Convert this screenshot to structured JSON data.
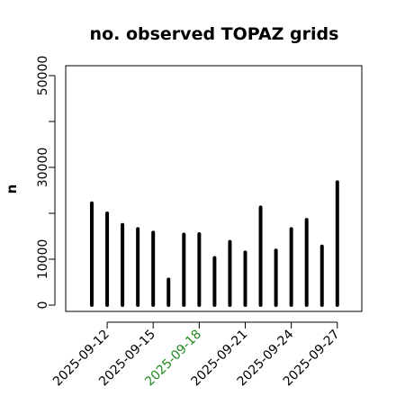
{
  "chart_data": {
    "type": "bar",
    "title": "no. observed TOPAZ grids",
    "xlabel": "",
    "ylabel": "n",
    "ylim": [
      0,
      50000
    ],
    "yticks": [
      0,
      10000,
      30000,
      50000
    ],
    "yticks_minor": [
      20000,
      40000
    ],
    "grid": false,
    "categories": [
      "2025-09-11",
      "2025-09-12",
      "2025-09-13",
      "2025-09-14",
      "2025-09-15",
      "2025-09-16",
      "2025-09-17",
      "2025-09-18",
      "2025-09-19",
      "2025-09-20",
      "2025-09-21",
      "2025-09-22",
      "2025-09-23",
      "2025-09-24",
      "2025-09-25",
      "2025-09-26",
      "2025-09-27"
    ],
    "values": [
      22200,
      20000,
      17500,
      16600,
      15800,
      5600,
      15400,
      15500,
      10300,
      13800,
      11500,
      21300,
      11900,
      16600,
      18600,
      12800,
      26800
    ],
    "xtick_labels": [
      {
        "label": "2025-09-12",
        "color": "#000000"
      },
      {
        "label": "2025-09-15",
        "color": "#000000"
      },
      {
        "label": "2025-09-18",
        "color": "#228B22"
      },
      {
        "label": "2025-09-21",
        "color": "#000000"
      },
      {
        "label": "2025-09-24",
        "color": "#000000"
      },
      {
        "label": "2025-09-27",
        "color": "#000000"
      }
    ],
    "bar_color": "#000000"
  }
}
